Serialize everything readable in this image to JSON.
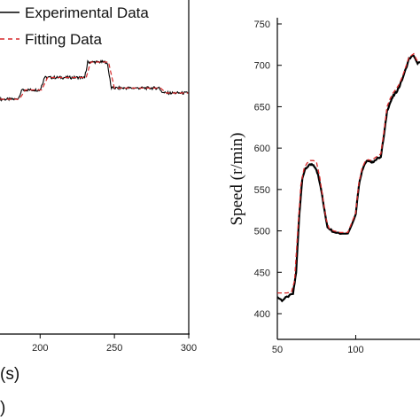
{
  "chart_data": [
    {
      "type": "line",
      "title": "",
      "xlabel_fragment": "(s)",
      "extra_fragment": ")",
      "x_ticks": [
        "200",
        "250",
        "300"
      ],
      "xlim_visible": [
        173,
        300
      ],
      "y_range_units": [
        0,
        1
      ],
      "grid": false,
      "legend": {
        "placement": "top-left",
        "entries": [
          "Experimental Data",
          "Fitting Data"
        ]
      },
      "series": [
        {
          "name": "Experimental Data",
          "color": "#000000",
          "style": "solid",
          "x": [
            173,
            185,
            188,
            200,
            203,
            230,
            232,
            245,
            248,
            280,
            283,
            300
          ],
          "values": [
            0.4,
            0.4,
            0.55,
            0.55,
            0.75,
            0.75,
            1.0,
            1.0,
            0.58,
            0.58,
            0.5,
            0.5
          ]
        },
        {
          "name": "Fitting Data",
          "color": "#d62728",
          "style": "dashed",
          "x": [
            173,
            186,
            190,
            201,
            205,
            231,
            234,
            246,
            250,
            281,
            285,
            300
          ],
          "values": [
            0.4,
            0.4,
            0.55,
            0.55,
            0.75,
            0.75,
            1.0,
            1.0,
            0.58,
            0.58,
            0.5,
            0.5
          ]
        }
      ]
    },
    {
      "type": "line",
      "title": "",
      "xlabel": "",
      "ylabel": "Speed (r/min)",
      "x_ticks": [
        "50",
        "100"
      ],
      "y_ticks": [
        "400",
        "450",
        "500",
        "550",
        "600",
        "650",
        "700",
        "750"
      ],
      "xlim_visible": [
        50,
        141
      ],
      "ylim": [
        388,
        755
      ],
      "grid": false,
      "series": [
        {
          "name": "Experimental Data",
          "color": "#000000",
          "style": "solid",
          "x": [
            50,
            53,
            56,
            60,
            62,
            64,
            66,
            68,
            70,
            72,
            74,
            76,
            78,
            80,
            82,
            85,
            90,
            95,
            100,
            102,
            104,
            106,
            108,
            110,
            112,
            116,
            118,
            120,
            122,
            124,
            126,
            128,
            131,
            134,
            137,
            139,
            141
          ],
          "values": [
            420,
            416,
            420,
            424,
            450,
            520,
            565,
            575,
            579,
            580,
            577,
            568,
            550,
            525,
            505,
            500,
            497,
            497,
            520,
            555,
            573,
            582,
            585,
            582,
            585,
            590,
            615,
            645,
            655,
            663,
            668,
            675,
            690,
            708,
            712,
            703,
            703
          ]
        },
        {
          "name": "Fitting Data",
          "color": "#d62728",
          "style": "dashed",
          "x": [
            50,
            56,
            59,
            61,
            63,
            65,
            67,
            69,
            71,
            73,
            75,
            77,
            79,
            81,
            83,
            86,
            90,
            95,
            100,
            102,
            104,
            106,
            108,
            110,
            112,
            116,
            118,
            120,
            122,
            124,
            126,
            128,
            131,
            134,
            137,
            139,
            141
          ],
          "values": [
            425,
            425,
            426,
            440,
            500,
            555,
            575,
            582,
            585,
            585,
            583,
            565,
            540,
            515,
            503,
            500,
            498,
            498,
            522,
            558,
            575,
            584,
            586,
            585,
            588,
            593,
            620,
            650,
            660,
            667,
            672,
            678,
            693,
            710,
            714,
            706,
            706
          ]
        }
      ]
    }
  ]
}
